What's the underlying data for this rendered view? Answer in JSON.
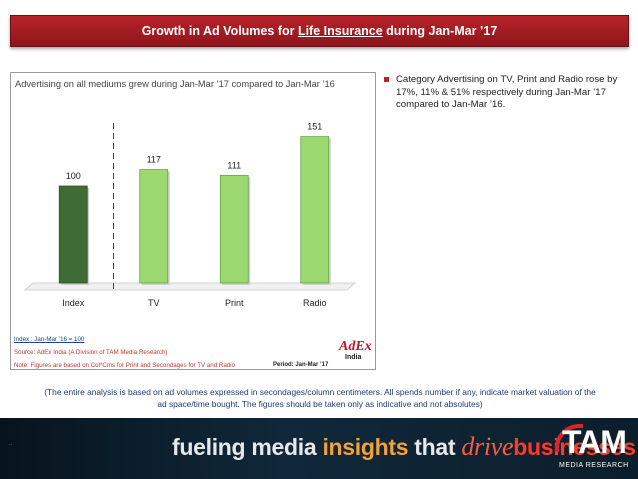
{
  "header": {
    "title_prefix": "Growth in Ad Volumes for ",
    "title_highlight": "Life Insurance",
    "title_suffix": " during Jan-Mar ’17"
  },
  "chart_data": {
    "type": "bar",
    "title": "Advertising on all mediums grew during Jan-Mar ’17 compared to Jan-Mar ’16",
    "categories": [
      "Index",
      "TV",
      "Print",
      "Radio"
    ],
    "values": [
      100,
      117,
      111,
      151
    ],
    "value_labels": [
      "100",
      "117",
      "111",
      "151"
    ],
    "ylim": [
      0,
      165
    ],
    "grid": false,
    "xlabel": "",
    "ylabel": "",
    "colors": {
      "index_bar": "#3f6b34",
      "bar": "#9bd870",
      "bar_edge": "#6aa548"
    }
  },
  "footnotes": {
    "index": "Index : Jan-Mar ’16 = 100",
    "source": "Source: AdEx India (A Division of TAM Media Research)",
    "note": "Note: Figures are based on Col*Cms for Print and Secondages for TV and Radio",
    "period": "Period: Jan-Mar ’17"
  },
  "logo": {
    "adex_line1": "AdEx",
    "adex_line2": "India"
  },
  "bullet": "Category Advertising on TV, Print and Radio rose by 17%, 11% & 51% respectively during Jan-Mar ’17 compared to Jan-Mar ’16.",
  "disclaimer": "(The entire analysis is based on ad volumes expressed in secondages/column centimeters. All spends number if any, indicate market valuation of the ad space/time bought. The figures should be taken only as indicative and not absolutes)",
  "banner": {
    "w1": "fueling media ",
    "w2": "insights",
    "w3": " that ",
    "w4": "drive",
    "w5": "businesses",
    "brand": "TAM",
    "brand_sub": "MEDIA RESEARCH"
  }
}
